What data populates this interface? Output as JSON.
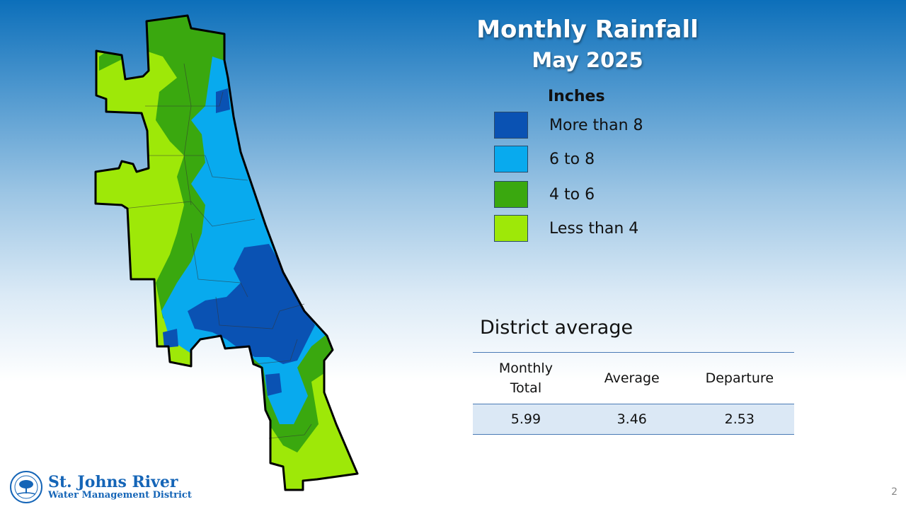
{
  "title": "Monthly Rainfall",
  "subtitle": "May 2025",
  "legend": {
    "title": "Inches",
    "items": [
      {
        "label": "More than 8",
        "color": "#0a52b3"
      },
      {
        "label": "6 to 8",
        "color": "#08aaee"
      },
      {
        "label": "4 to 6",
        "color": "#3aa80f"
      },
      {
        "label": "Less than 4",
        "color": "#9ee808"
      }
    ]
  },
  "district_average": {
    "title": "District average",
    "headers": [
      "Monthly Total",
      "Average",
      "Departure"
    ],
    "values": [
      "5.99",
      "3.46",
      "2.53"
    ]
  },
  "logo": {
    "line1": "St. Johns River",
    "line2": "Water Management District"
  },
  "page_number": "2"
}
